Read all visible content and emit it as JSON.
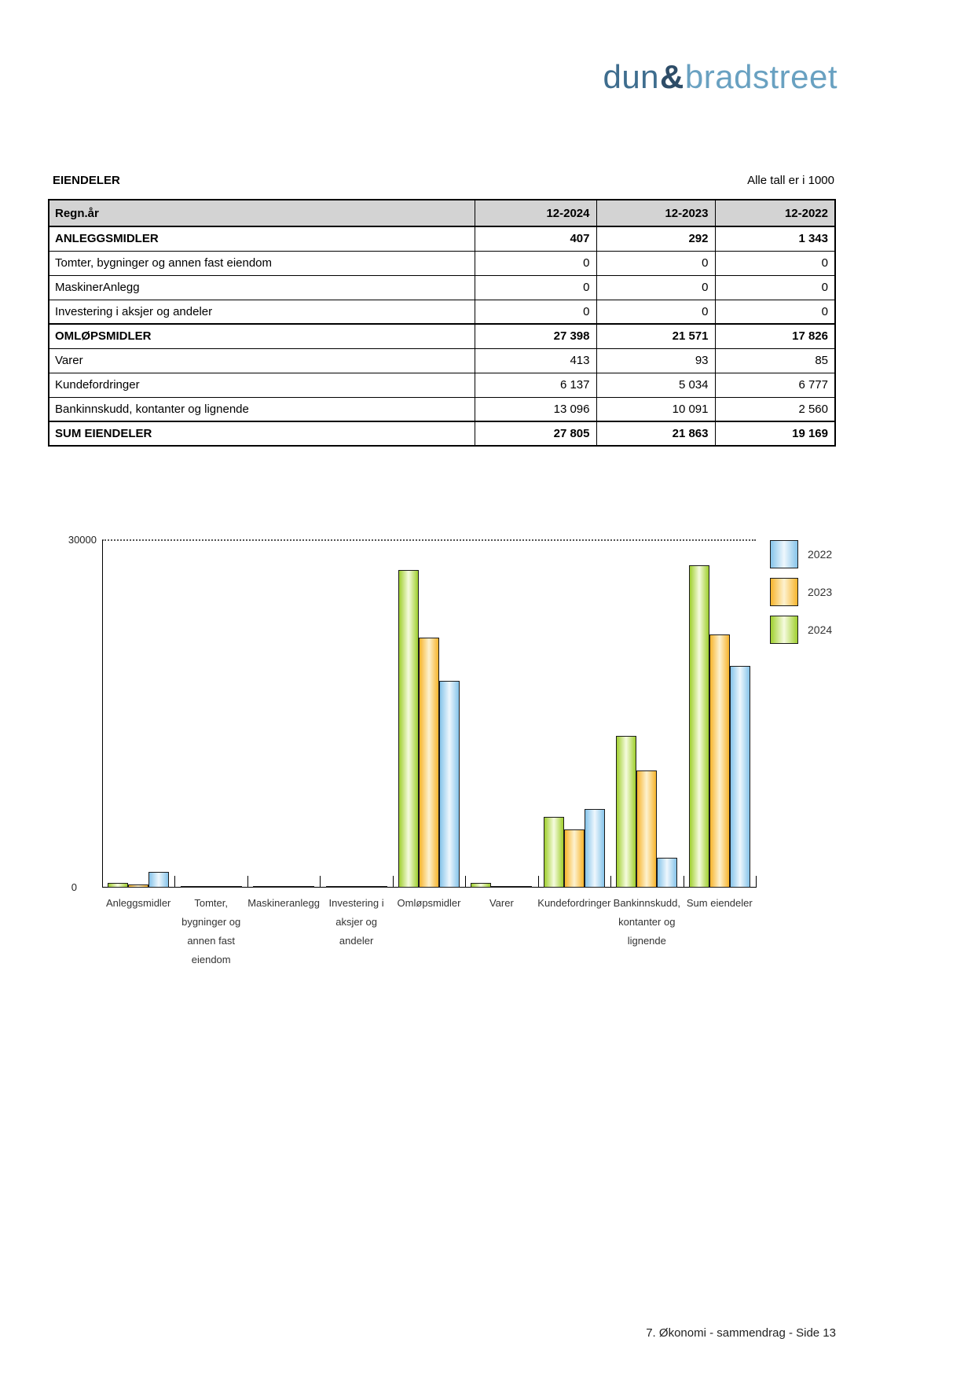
{
  "logo": {
    "part1": "dun",
    "amp": "&",
    "part2": "bradstreet",
    "color_part1": "#3e6d8e",
    "color_amp": "#2e4d68",
    "color_part2": "#69a1c1"
  },
  "section": {
    "title": "EIENDELER",
    "note": "Alle tall er i 1000"
  },
  "table": {
    "header": [
      "Regn.år",
      "12-2024",
      "12-2023",
      "12-2022"
    ],
    "header_bg": "#d3d3d3",
    "rows": [
      {
        "label": "ANLEGGSMIDLER",
        "values": [
          "407",
          "292",
          "1 343"
        ],
        "bold": true
      },
      {
        "label": "Tomter, bygninger og annen fast eiendom",
        "values": [
          "0",
          "0",
          "0"
        ],
        "bold": false
      },
      {
        "label": "MaskinerAnlegg",
        "values": [
          "0",
          "0",
          "0"
        ],
        "bold": false
      },
      {
        "label": "Investering i aksjer og andeler",
        "values": [
          "0",
          "0",
          "0"
        ],
        "bold": false
      },
      {
        "label": "OMLØPSMIDLER",
        "values": [
          "27 398",
          "21 571",
          "17 826"
        ],
        "bold": true
      },
      {
        "label": "Varer",
        "values": [
          "413",
          "93",
          "85"
        ],
        "bold": false
      },
      {
        "label": "Kundefordringer",
        "values": [
          "6 137",
          "5 034",
          "6 777"
        ],
        "bold": false
      },
      {
        "label": "Bankinnskudd, kontanter og lignende",
        "values": [
          "13 096",
          "10 091",
          "2 560"
        ],
        "bold": false
      },
      {
        "label": "SUM EIENDELER",
        "values": [
          "27 805",
          "21 863",
          "19 169"
        ],
        "bold": true
      }
    ]
  },
  "chart_data": {
    "type": "bar",
    "title": "",
    "ylim": [
      0,
      30000
    ],
    "ytick_labels": {
      "top": "30000",
      "bottom": "0"
    },
    "grid": "dotted line at 30000 only",
    "legend_position": "top-right",
    "legend_order": [
      "2022",
      "2023",
      "2024"
    ],
    "categories": [
      "Anleggsmidler",
      "Tomter, bygninger og annen fast eiendom",
      "Maskineranlegg",
      "Investering i aksjer og andeler",
      "Omløpsmidler",
      "Varer",
      "Kundefordringer",
      "Bankinnskudd, kontanter og lignende",
      "Sum eiendeler"
    ],
    "category_label_lines": [
      [
        "Anleggsmidler"
      ],
      [
        "Tomter,",
        "bygninger og",
        "annen fast",
        "eiendom"
      ],
      [
        "Maskineranlegg"
      ],
      [
        "Investering i",
        "aksjer og",
        "andeler"
      ],
      [
        "Omløpsmidler"
      ],
      [
        "Varer"
      ],
      [
        "Kundefordringer"
      ],
      [
        "Bankinnskudd,",
        "kontanter og",
        "lignende"
      ],
      [
        "Sum eiendeler"
      ]
    ],
    "series": [
      {
        "name": "2024",
        "values": [
          407,
          0,
          0,
          0,
          27398,
          413,
          6137,
          13096,
          27805
        ],
        "edge_color": "#9fcf2e",
        "center_color": "#f6fbdf"
      },
      {
        "name": "2023",
        "values": [
          292,
          0,
          0,
          0,
          21571,
          93,
          5034,
          10091,
          21863
        ],
        "edge_color": "#f7b42c",
        "center_color": "#fdf2d0"
      },
      {
        "name": "2022",
        "values": [
          1343,
          0,
          0,
          0,
          17826,
          85,
          6777,
          2560,
          19169
        ],
        "edge_color": "#86c4ea",
        "center_color": "#eef7fd"
      }
    ]
  },
  "footer": {
    "text": "7. Økonomi - sammendrag - Side 13"
  }
}
